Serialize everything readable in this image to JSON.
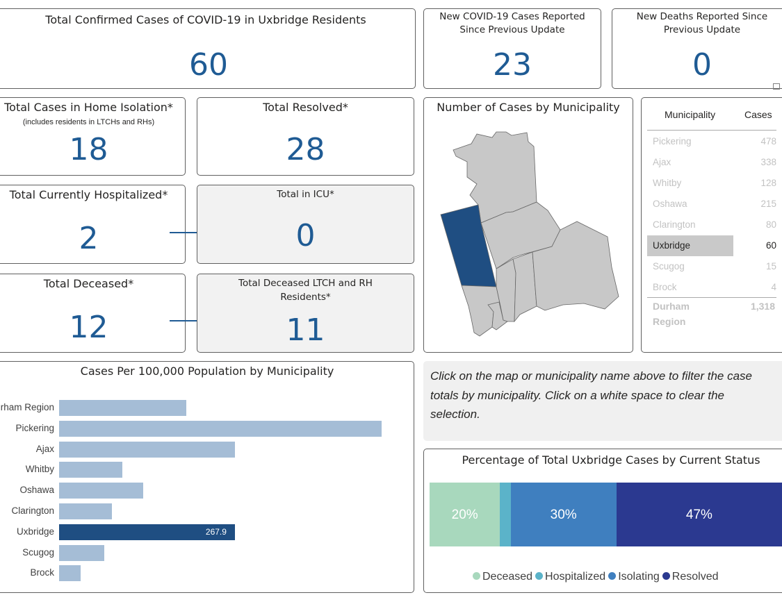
{
  "kpi": {
    "total_confirmed": {
      "title": "Total Confirmed Cases of COVID-19 in Uxbridge Residents",
      "value": "60"
    },
    "new_cases": {
      "title_line1": "New COVID-19 Cases Reported",
      "title_line2": "Since Previous Update",
      "value": "23"
    },
    "new_deaths": {
      "title_line1": "New Deaths Reported Since",
      "title_line2": "Previous Update",
      "value": "0"
    },
    "home_isolation": {
      "title": "Total Cases in Home Isolation*",
      "subtitle": "(includes residents in LTCHs and RHs)",
      "value": "18"
    },
    "resolved": {
      "title": "Total Resolved*",
      "value": "28"
    },
    "hospitalized": {
      "title": "Total Currently Hospitalized*",
      "value": "2"
    },
    "icu": {
      "title": "Total in ICU*",
      "value": "0"
    },
    "deceased": {
      "title": "Total Deceased*",
      "value": "12"
    },
    "deceased_ltch": {
      "title_line1": "Total Deceased LTCH and RH",
      "title_line2": "Residents*",
      "value": "11"
    }
  },
  "map": {
    "title": "Number of Cases by Municipality"
  },
  "table": {
    "headers": [
      "Municipality",
      "Cases"
    ],
    "rows": [
      {
        "name": "Pickering",
        "cases": "478"
      },
      {
        "name": "Ajax",
        "cases": "338"
      },
      {
        "name": "Whitby",
        "cases": "128"
      },
      {
        "name": "Oshawa",
        "cases": "215"
      },
      {
        "name": "Clarington",
        "cases": "80"
      },
      {
        "name": "Uxbridge",
        "cases": "60"
      },
      {
        "name": "Scugog",
        "cases": "15"
      },
      {
        "name": "Brock",
        "cases": "4"
      }
    ],
    "selected": "Uxbridge",
    "total_label_line1": "Durham",
    "total_label_line2": "Region",
    "total_value": "1,318"
  },
  "note": {
    "line1": "Click on the map or municipality name above to filter the case",
    "line2": "totals by municipality. Click on a white space to clear the",
    "line3": "selection."
  },
  "colors": {
    "kpi_value": "#1f5b94",
    "bar_default": "#a5bdd6",
    "bar_selected": "#1f4e82",
    "map_selected": "#1f4e82",
    "map_default": "#c8c8c8",
    "deceased": "#a8d8bd",
    "hospitalized": "#5bb3c9",
    "isolating": "#3f7fbf",
    "resolved": "#2b3990"
  },
  "chart_data": [
    {
      "type": "bar",
      "title": "Cases Per 100,000 Population by Municipality",
      "orientation": "horizontal",
      "categories": [
        "Durham Region",
        "Pickering",
        "Ajax",
        "Whitby",
        "Oshawa",
        "Clarington",
        "Uxbridge",
        "Scugog",
        "Brock"
      ],
      "values": [
        194,
        492,
        268,
        96,
        128,
        81,
        267.9,
        69,
        33
      ],
      "data_labels": {
        "Uxbridge": "267.9"
      },
      "highlighted": "Uxbridge",
      "xlim": [
        0,
        500
      ]
    },
    {
      "type": "bar",
      "stacked": "100%",
      "title": "Percentage of Total Uxbridge Cases by Current Status",
      "series": [
        {
          "name": "Deceased",
          "value": 20,
          "label": "20%"
        },
        {
          "name": "Hospitalized",
          "value": 3,
          "label": ""
        },
        {
          "name": "Isolating",
          "value": 30,
          "label": "30%"
        },
        {
          "name": "Resolved",
          "value": 47,
          "label": "47%"
        }
      ],
      "legend_position": "bottom"
    }
  ]
}
